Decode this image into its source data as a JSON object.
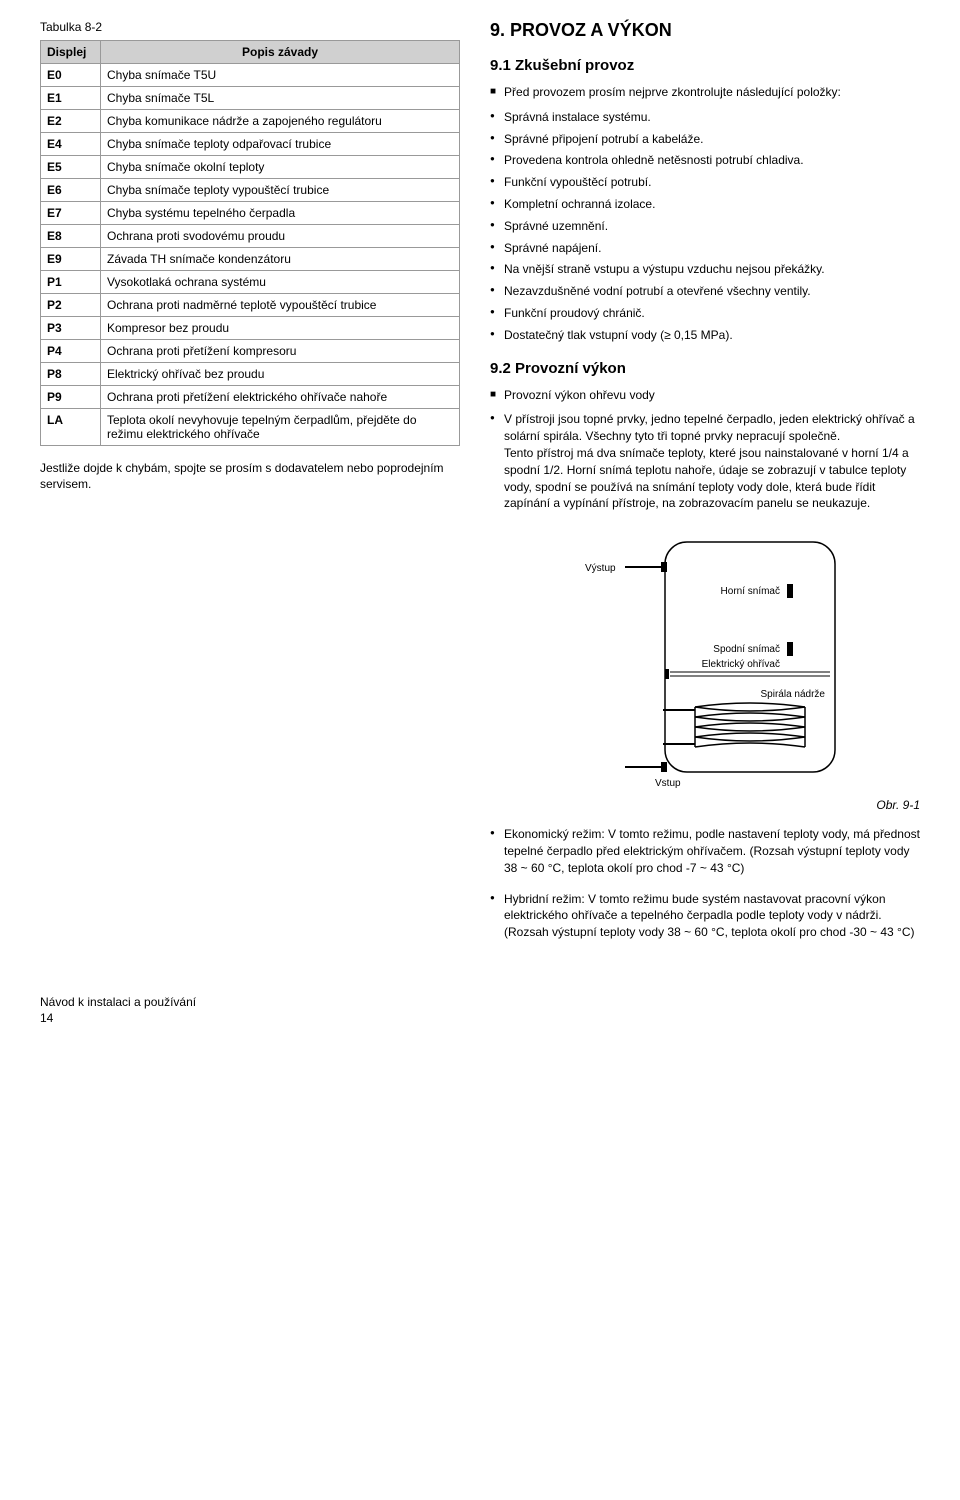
{
  "table": {
    "caption": "Tabulka 8-2",
    "head_col1": "Displej",
    "head_col2": "Popis závady",
    "rows": [
      {
        "code": "E0",
        "desc": "Chyba snímače T5U"
      },
      {
        "code": "E1",
        "desc": "Chyba snímače T5L"
      },
      {
        "code": "E2",
        "desc": "Chyba komunikace nádrže a zapojeného regulátoru"
      },
      {
        "code": "E4",
        "desc": "Chyba snímače teploty odpařovací trubice"
      },
      {
        "code": "E5",
        "desc": "Chyba snímače okolní teploty"
      },
      {
        "code": "E6",
        "desc": "Chyba snímače teploty vypouštěcí trubice"
      },
      {
        "code": "E7",
        "desc": "Chyba systému tepelného čerpadla"
      },
      {
        "code": "E8",
        "desc": "Ochrana proti svodovému proudu"
      },
      {
        "code": "E9",
        "desc": "Závada TH snímače kondenzátoru"
      },
      {
        "code": "P1",
        "desc": "Vysokotlaká ochrana systému"
      },
      {
        "code": "P2",
        "desc": "Ochrana proti nadměrné teplotě vypouštěcí trubice"
      },
      {
        "code": "P3",
        "desc": "Kompresor bez proudu"
      },
      {
        "code": "P4",
        "desc": "Ochrana proti přetížení kompresoru"
      },
      {
        "code": "P8",
        "desc": "Elektrický ohřívač bez proudu"
      },
      {
        "code": "P9",
        "desc": "Ochrana proti přetížení elektrického ohřívače nahoře"
      },
      {
        "code": "LA",
        "desc": "Teplota okolí nevyhovuje tepelným čerpadlům, přejděte do režimu elektrického ohřívače"
      }
    ],
    "note": "Jestliže dojde k chybám, spojte se prosím s dodavatelem nebo poprodejním servisem."
  },
  "section9": {
    "title": "9.   PROVOZ A VÝKON",
    "s91_title": "9.1   Zkušební provoz",
    "s91_lead": "Před provozem prosím nejprve zkontrolujte následující položky:",
    "s91_items": [
      "Správná instalace systému.",
      "Správné připojení potrubí a kabeláže.",
      "Provedena kontrola ohledně netěsnosti potrubí chladiva.",
      "Funkční vypouštěcí potrubí.",
      "Kompletní ochranná izolace.",
      "Správné uzemnění.",
      "Správné napájení.",
      "Na vnější straně vstupu a výstupu vzduchu nejsou překážky.",
      "Nezavzdušněné vodní potrubí a otevřené všechny ventily.",
      "Funkční proudový chránič.",
      "Dostatečný tlak vstupní vody (≥ 0,15 MPa)."
    ],
    "s92_title": "9.2   Provozní výkon",
    "s92_lead": "Provozní výkon ohřevu vody",
    "s92_para": "V přístroji jsou topné prvky, jedno tepelné čerpadlo, jeden elektrický ohřívač a solární spirála. Všechny tyto tři topné prvky nepracují společně.\nTento přístroj má dva snímače teploty, které jsou nainstalované v horní 1/4 a spodní 1/2. Horní snímá teplotu nahoře, údaje se zobrazují v tabulce teploty vody, spodní se používá na snímání teploty vody dole, která bude řídit zapínání a vypínání přístroje, na zobrazovacím panelu se neukazuje.",
    "diagram": {
      "labels": {
        "vystup": "Výstup",
        "horni": "Horní snímač",
        "spodni": "Spodní snímač",
        "ohrivac": "Elektrický ohřívač",
        "spirala": "Spirála nádrže",
        "vstup": "Vstup"
      }
    },
    "fig_caption": "Obr. 9-1",
    "s92_items": [
      "Ekonomický režim: V tomto režimu, podle nastavení teploty vody, má přednost tepelné čerpadlo před elektrickým ohřívačem. (Rozsah výstupní teploty vody 38 ~ 60 °C, teplota okolí pro chod -7 ~ 43 °C)",
      "Hybridní režim: V tomto režimu bude systém nastavovat pracovní výkon elektrického ohřívače a tepelného čerpadla podle teploty vody v nádrži.\n(Rozsah výstupní teploty vody 38 ~ 60 °C, teplota okolí pro chod -30 ~ 43 °C)"
    ]
  },
  "footer": {
    "line": "Návod k instalaci a používání",
    "page": "14"
  }
}
